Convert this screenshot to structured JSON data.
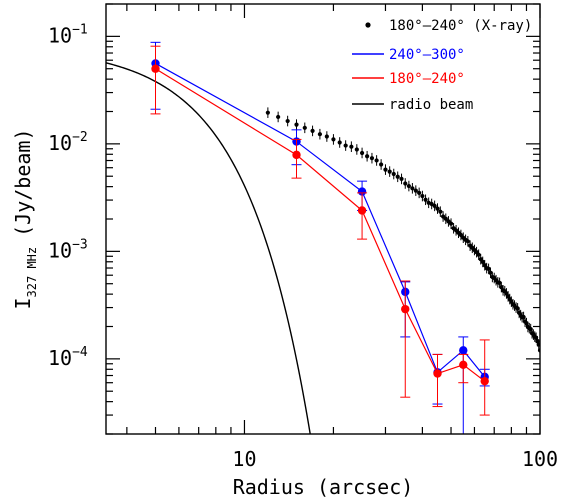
{
  "chart_data": {
    "type": "scatter",
    "title": "",
    "xlabel": "Radius (arcsec)",
    "ylabel_main": "I",
    "ylabel_sub": "327 MHz",
    "ylabel_unit": "(Jy/beam)",
    "x_scale": "log",
    "y_scale": "log",
    "xlim": [
      3.4,
      100
    ],
    "ylim": [
      2e-05,
      0.2
    ],
    "x_ticks": [
      {
        "value": 10,
        "label": "10"
      },
      {
        "value": 100,
        "label": "100"
      }
    ],
    "y_ticks": [
      {
        "value": 0.1,
        "base": "10",
        "exp": "−1"
      },
      {
        "value": 0.01,
        "base": "10",
        "exp": "−2"
      },
      {
        "value": 0.001,
        "base": "10",
        "exp": "−3"
      },
      {
        "value": 0.0001,
        "base": "10",
        "exp": "−4"
      }
    ],
    "grid": false,
    "legend_position": "top-right",
    "series": [
      {
        "name": "180°–240° (X-ray)",
        "color": "#000000",
        "style": "points",
        "x": [
          12.0,
          13.0,
          14.0,
          15.0,
          16.0,
          17.0,
          18.0,
          19.0,
          20.0,
          21.0,
          22.0,
          23.0,
          24.0,
          25.0,
          26.0,
          27.0,
          28.0,
          29.0,
          30.0,
          31.0,
          32.0,
          33.0,
          34.0,
          35.0,
          36.0,
          37.0,
          38.0,
          39.0,
          40.0,
          41.0,
          42.0,
          43.0,
          44.0,
          45.0,
          46.0,
          47.0,
          48.0,
          49.0,
          50.0,
          51.0,
          52.0,
          53.0,
          54.0,
          55.0,
          56.0,
          57.0,
          58.0,
          59.0,
          60.0,
          61.0,
          62.0,
          63.0,
          64.0,
          65.0,
          66.0,
          67.0,
          68.0,
          69.0,
          70.0,
          71.0,
          72.0,
          73.0,
          74.0,
          75.0,
          76.0,
          77.0,
          78.0,
          79.0,
          80.0,
          81.0,
          82.0,
          83.0,
          84.0,
          85.0,
          86.0,
          87.0,
          88.0,
          89.0,
          90.0,
          91.0,
          92.0,
          93.0,
          94.0,
          95.0,
          96.0,
          97.0,
          98.0,
          99.0,
          100.0
        ],
        "y": [
          0.0195,
          0.0178,
          0.0163,
          0.0151,
          0.0141,
          0.0132,
          0.0123,
          0.0117,
          0.011,
          0.0103,
          0.00964,
          0.00941,
          0.00887,
          0.00823,
          0.00767,
          0.00736,
          0.00701,
          0.00643,
          0.00576,
          0.00552,
          0.00524,
          0.00494,
          0.00472,
          0.00428,
          0.00405,
          0.00386,
          0.00367,
          0.0035,
          0.00327,
          0.00302,
          0.00283,
          0.00276,
          0.00265,
          0.0025,
          0.00234,
          0.00211,
          0.00201,
          0.0019,
          0.00181,
          0.00164,
          0.00157,
          0.00149,
          0.00142,
          0.00134,
          0.00128,
          0.00124,
          0.00113,
          0.00108,
          0.00103,
          0.000983,
          0.00093,
          0.000846,
          0.000798,
          0.000743,
          0.000698,
          0.000687,
          0.000633,
          0.000578,
          0.000565,
          0.000539,
          0.000515,
          0.000509,
          0.000465,
          0.000434,
          0.000426,
          0.000406,
          0.000381,
          0.00036,
          0.00034,
          0.000322,
          0.000313,
          0.0003,
          0.000295,
          0.000268,
          0.000255,
          0.000244,
          0.000245,
          0.000222,
          0.000215,
          0.000198,
          0.000193,
          0.000189,
          0.000173,
          0.000168,
          0.000161,
          0.000157,
          0.000146,
          0.000136,
          0.00012
        ]
      },
      {
        "name": "240°–300°",
        "color": "#0000ff",
        "style": "line-markers-errorbars",
        "x": [
          5,
          15,
          25,
          35,
          45,
          55,
          65
        ],
        "y": [
          0.056,
          0.0105,
          0.0036,
          0.00042,
          7.5e-05,
          0.00012,
          6.8e-05
        ],
        "y_low": [
          0.021,
          0.0064,
          0.0024,
          0.00016,
          3.8e-05,
          2e-05,
          5.6e-05
        ],
        "y_high": [
          0.088,
          0.0135,
          0.0045,
          0.00052,
          0.00011,
          0.00016,
          8e-05
        ]
      },
      {
        "name": "180°–240°",
        "color": "#ff0000",
        "style": "line-markers-errorbars",
        "x": [
          5,
          15,
          25,
          35,
          45,
          55,
          65
        ],
        "y": [
          0.05,
          0.0079,
          0.0024,
          0.00029,
          7.3e-05,
          8.8e-05,
          6.2e-05
        ],
        "y_low": [
          0.019,
          0.0048,
          0.0013,
          4.4e-05,
          3.6e-05,
          6e-05,
          3e-05
        ],
        "y_high": [
          0.081,
          0.011,
          0.0035,
          0.00053,
          0.00011,
          0.00011,
          0.00015
        ]
      },
      {
        "name": "radio beam",
        "color": "#000000",
        "style": "line",
        "model": "gaussian",
        "peak": 0.08,
        "fwhm_arcsec": 9.65
      }
    ]
  }
}
